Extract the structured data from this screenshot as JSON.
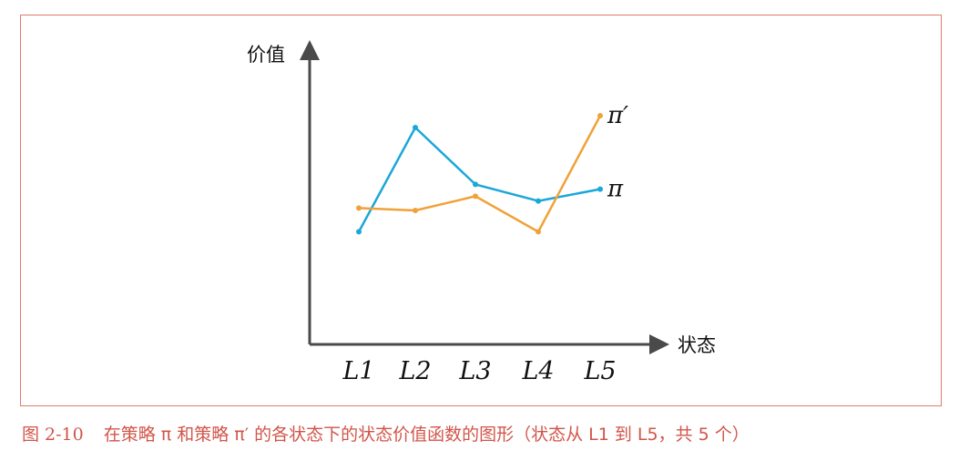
{
  "chart_data": {
    "type": "line",
    "categories": [
      "L1",
      "L2",
      "L3",
      "L4",
      "L5"
    ],
    "ylabel": "价值",
    "xlabel": "状态",
    "y_ticks_shown": false,
    "grid": false,
    "ylim": [
      0,
      10
    ],
    "series": [
      {
        "name": "π",
        "color": "#1ba7d9",
        "values": [
          3.6,
          8.0,
          5.6,
          4.9,
          5.4
        ]
      },
      {
        "name": "π′",
        "color": "#f0a23a",
        "values": [
          4.6,
          4.5,
          5.1,
          3.6,
          8.5
        ]
      }
    ]
  },
  "caption": {
    "number": "图 2-10",
    "text": "在策略 π 和策略 π′ 的各状态下的状态价值函数的图形（状态从 L1 到 L5，共 5 个）"
  },
  "colors": {
    "axis": "#4a4a4a",
    "frame": "#e07a6e",
    "caption": "#d2554a"
  }
}
